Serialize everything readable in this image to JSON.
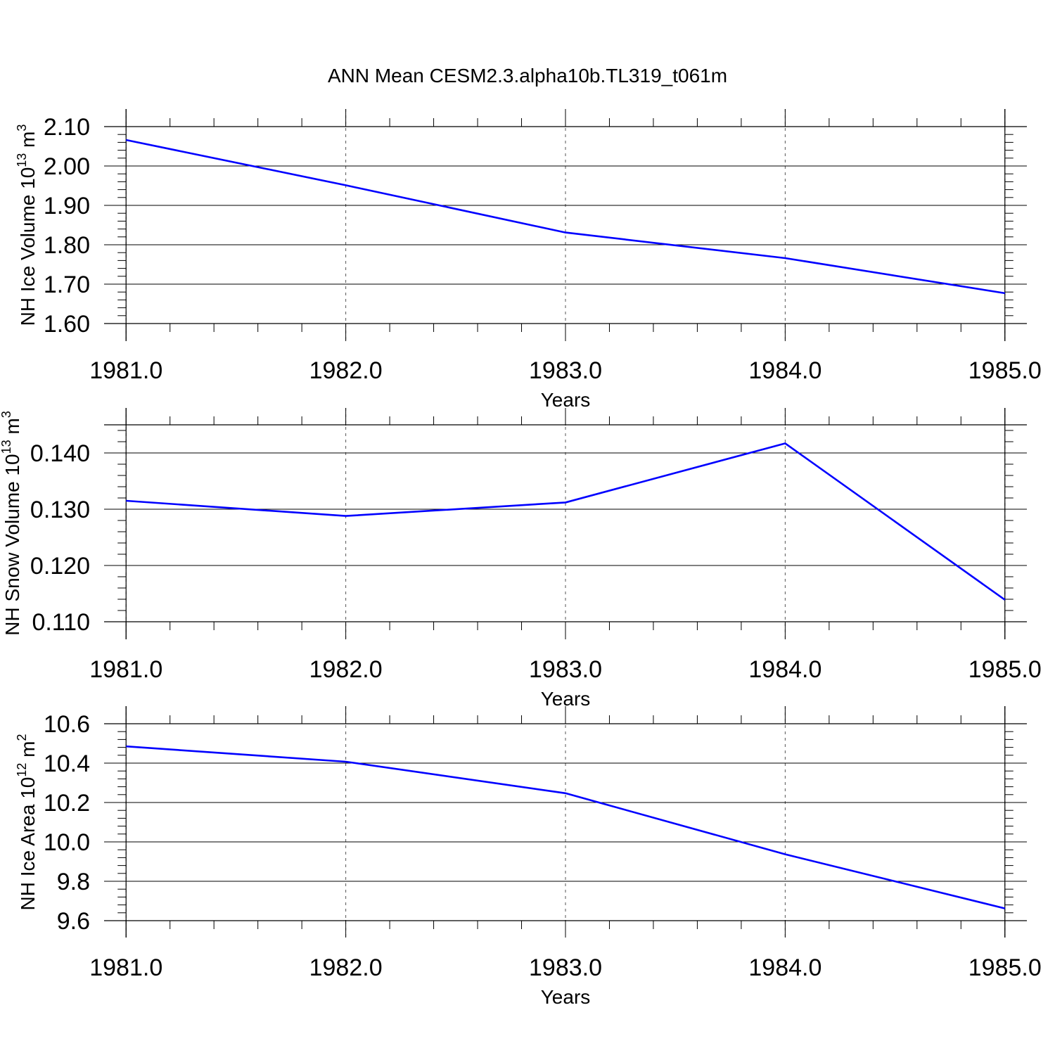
{
  "title": "ANN Mean CESM2.3.alpha10b.TL319_t061m",
  "colors": {
    "series": "#0000ff",
    "axes": "#000000",
    "grid": "#555555"
  },
  "chart_data": [
    {
      "type": "line",
      "x": [
        1981.0,
        1982.0,
        1983.0,
        1984.0,
        1985.0
      ],
      "series": [
        {
          "values": [
            2.066,
            1.951,
            1.831,
            1.766,
            1.677
          ]
        }
      ],
      "xlabel": "Years",
      "ylabel_base": "NH Ice Volume 10",
      "ylabel_exp": "13",
      "ylabel_unit": "m",
      "ylabel_unit_exp": "3",
      "xlim": [
        1980.9,
        1985.1
      ],
      "ylim": [
        1.6,
        2.1
      ],
      "xticks": [
        "1981.0",
        "1982.0",
        "1983.0",
        "1984.0",
        "1985.0"
      ],
      "yticks": [
        "1.60",
        "1.70",
        "1.80",
        "1.90",
        "2.00",
        "2.10"
      ],
      "grid": "vertical dashed at major x ticks"
    },
    {
      "type": "line",
      "x": [
        1981.0,
        1982.0,
        1983.0,
        1984.0,
        1985.0
      ],
      "series": [
        {
          "values": [
            0.1315,
            0.1288,
            0.1312,
            0.1417,
            0.1139
          ]
        }
      ],
      "xlabel": "Years",
      "ylabel_base": "NH Snow Volume 10",
      "ylabel_exp": "13",
      "ylabel_unit": "m",
      "ylabel_unit_exp": "3",
      "xlim": [
        1980.9,
        1985.1
      ],
      "ylim": [
        0.11,
        0.145
      ],
      "xticks": [
        "1981.0",
        "1982.0",
        "1983.0",
        "1984.0",
        "1985.0"
      ],
      "yticks": [
        "0.110",
        "0.120",
        "0.130",
        "0.140"
      ],
      "grid": "vertical dashed at major x ticks"
    },
    {
      "type": "line",
      "x": [
        1981.0,
        1982.0,
        1983.0,
        1984.0,
        1985.0
      ],
      "series": [
        {
          "values": [
            10.485,
            10.407,
            10.247,
            9.937,
            9.662
          ]
        }
      ],
      "xlabel": "Years",
      "ylabel_base": "NH Ice Area 10",
      "ylabel_exp": "12",
      "ylabel_unit": "m",
      "ylabel_unit_exp": "2",
      "xlim": [
        1980.9,
        1985.1
      ],
      "ylim": [
        9.6,
        10.6
      ],
      "xticks": [
        "1981.0",
        "1982.0",
        "1983.0",
        "1984.0",
        "1985.0"
      ],
      "yticks": [
        "9.6",
        "9.8",
        "10.0",
        "10.2",
        "10.4",
        "10.6"
      ],
      "grid": "vertical dashed at major x ticks"
    }
  ]
}
